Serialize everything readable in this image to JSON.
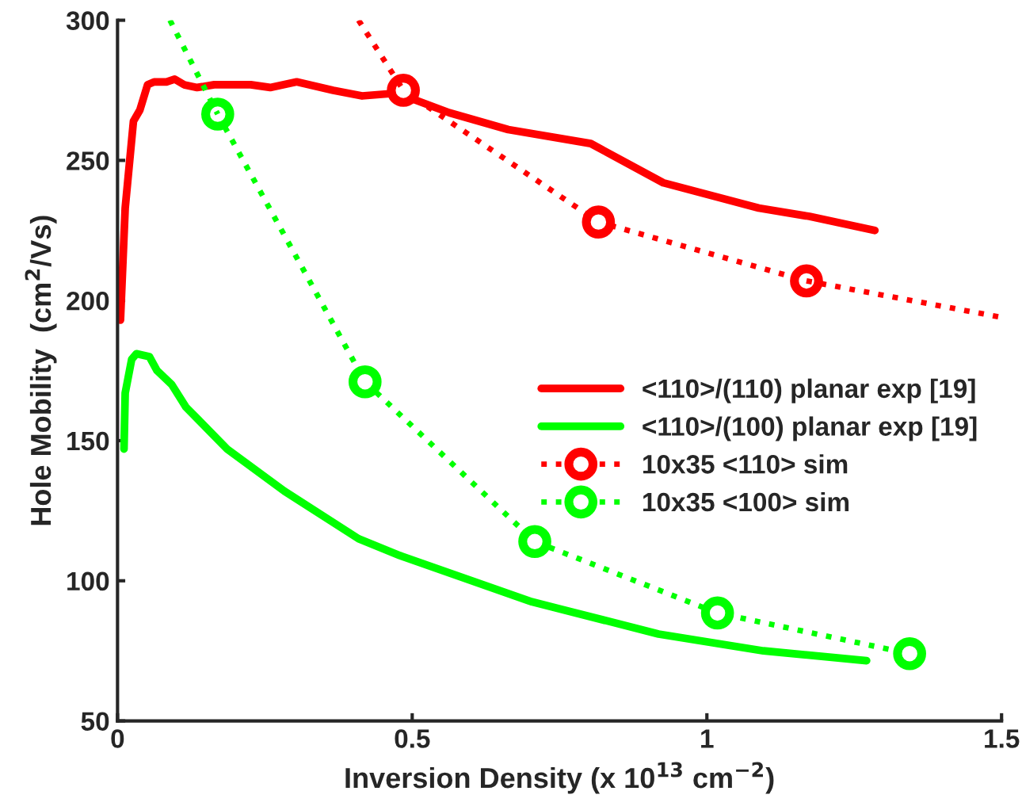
{
  "chart_data": {
    "type": "line",
    "xlabel": "Inversion Density (x 10$^{13}$ cm$^{−2}$)",
    "ylabel": "Hole Mobility  (cm$^{2}$/Vs)",
    "xlim": [
      0,
      1.5
    ],
    "xticks": [
      0,
      0.5,
      1,
      1.5
    ],
    "ylim": [
      50,
      300
    ],
    "yticks": [
      50,
      100,
      150,
      200,
      250,
      300
    ],
    "grid": false,
    "legend": "right",
    "series": [
      {
        "name": "<110>/(110) planar exp [19]",
        "color": "#ff0000",
        "line_style": "solid",
        "marker": "none",
        "x": [
          0.005,
          0.013,
          0.027,
          0.038,
          0.051,
          0.062,
          0.083,
          0.097,
          0.113,
          0.135,
          0.164,
          0.226,
          0.259,
          0.304,
          0.366,
          0.415,
          0.474,
          0.563,
          0.663,
          0.803,
          0.926,
          1.088,
          1.174,
          1.285
        ],
        "values": [
          193,
          233,
          264,
          268,
          277,
          278,
          278,
          279,
          277,
          276,
          277,
          277,
          276,
          278,
          275,
          273,
          274,
          267,
          261,
          256,
          242,
          233,
          230,
          225
        ]
      },
      {
        "name": "<110>/(100) planar exp [19]",
        "color": "#00ff00",
        "line_style": "solid",
        "marker": "none",
        "x": [
          0.011,
          0.013,
          0.024,
          0.032,
          0.054,
          0.067,
          0.092,
          0.116,
          0.186,
          0.283,
          0.409,
          0.479,
          0.703,
          0.918,
          1.096,
          1.271
        ],
        "values": [
          147,
          167,
          179,
          181,
          180,
          175,
          170,
          162,
          147,
          132,
          115,
          109,
          92.5,
          81,
          75,
          71.5
        ]
      },
      {
        "name": "10x35 <110> sim",
        "color": "#ff0000",
        "line_style": "dotted",
        "marker": "circle",
        "x": [
          0.485,
          0.816,
          1.169
        ],
        "values": [
          275,
          228,
          207
        ]
      },
      {
        "name": "10x35 <100> sim",
        "color": "#00ff00",
        "line_style": "dotted",
        "marker": "circle",
        "x": [
          0.17,
          0.42,
          0.708,
          1.018,
          1.344
        ],
        "values": [
          266.5,
          171,
          114,
          88.5,
          74
        ]
      },
      {
        "color": "#ff0000",
        "line_style": "dotted",
        "marker": "none",
        "x": [
          0.409,
          0.485
        ],
        "values": [
          300,
          275
        ]
      },
      {
        "color": "#ff0000",
        "line_style": "dotted",
        "marker": "none",
        "x": [
          1.169,
          1.5
        ],
        "values": [
          207,
          194
        ]
      },
      {
        "color": "#00ff00",
        "line_style": "dotted",
        "marker": "none",
        "x": [
          0.089,
          0.17
        ],
        "values": [
          300,
          266.5
        ]
      }
    ]
  }
}
